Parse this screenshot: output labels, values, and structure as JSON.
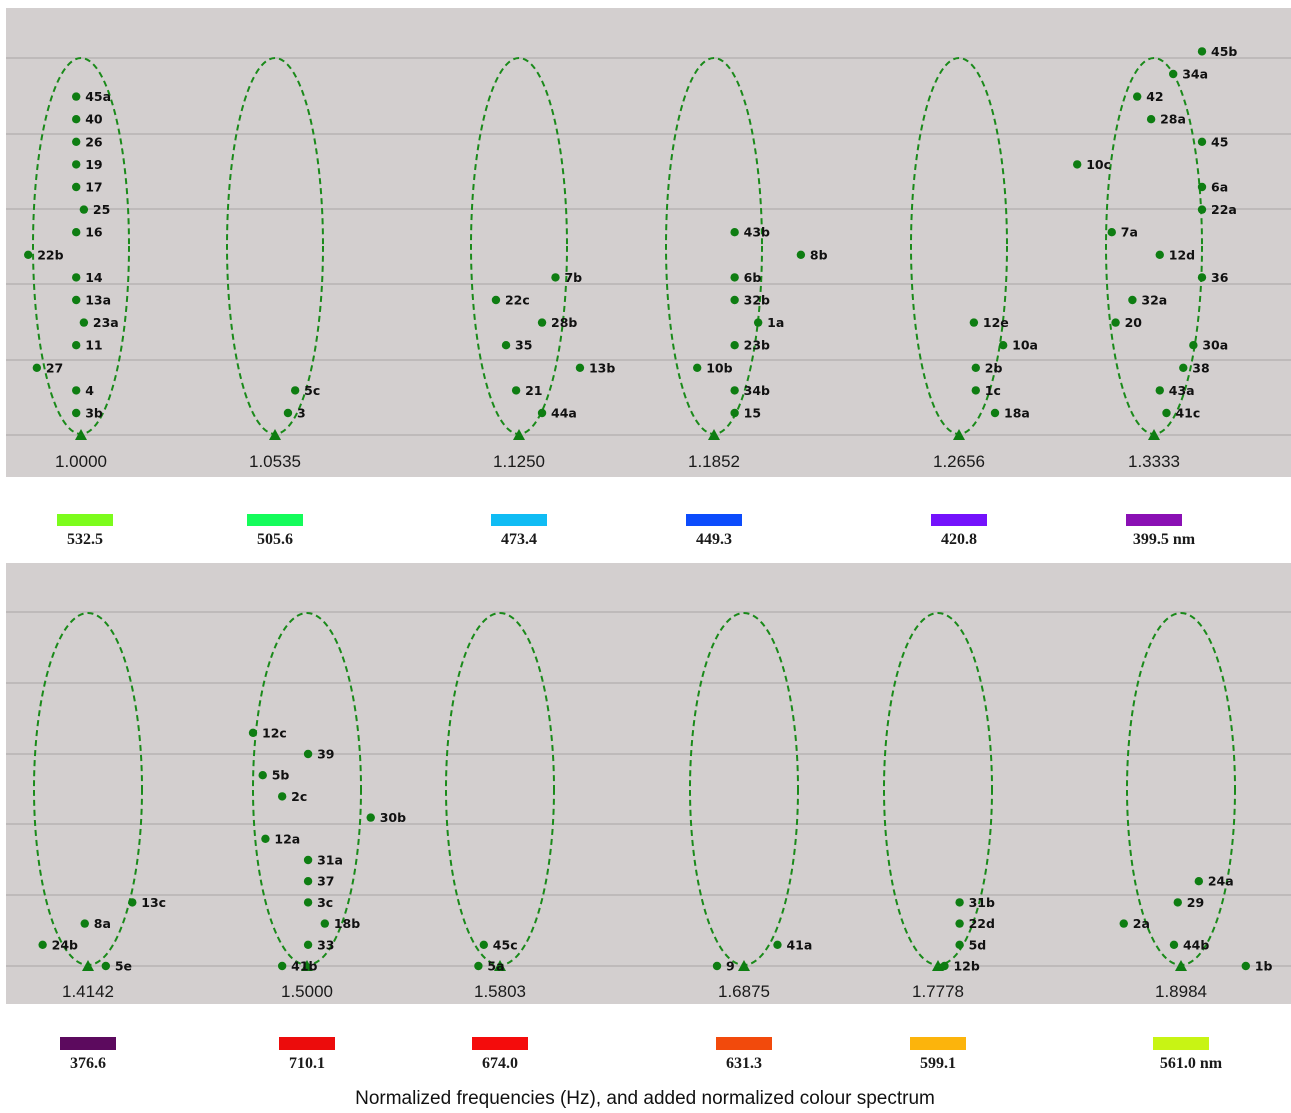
{
  "caption": "Normalized frequencies (Hz), and added normalized colour spectrum",
  "colors": {
    "panel_bg": "#d3cfcf",
    "gridline": "#a9a6a6",
    "marker": "#0e7d12",
    "ellipse": "#1a8a1a"
  },
  "chart_data": [
    {
      "type": "scatter",
      "level_range": [
        -0.5,
        16.5
      ],
      "groups": [
        {
          "ratio": "1.0000",
          "wavelength": "532.5",
          "band_color": "#7cfc1c",
          "points": [
            {
              "label": "45a",
              "x": -0.1,
              "level": 14
            },
            {
              "label": "40",
              "x": -0.1,
              "level": 13
            },
            {
              "label": "26",
              "x": -0.1,
              "level": 12
            },
            {
              "label": "19",
              "x": -0.1,
              "level": 11
            },
            {
              "label": "17",
              "x": -0.1,
              "level": 10
            },
            {
              "label": "25",
              "x": 0.06,
              "level": 9
            },
            {
              "label": "16",
              "x": -0.1,
              "level": 8
            },
            {
              "label": "22b",
              "x": -1.1,
              "level": 7
            },
            {
              "label": "14",
              "x": -0.1,
              "level": 6
            },
            {
              "label": "13a",
              "x": -0.1,
              "level": 5
            },
            {
              "label": "23a",
              "x": 0.06,
              "level": 4
            },
            {
              "label": "11",
              "x": -0.1,
              "level": 3
            },
            {
              "label": "27",
              "x": -0.92,
              "level": 2
            },
            {
              "label": "4",
              "x": -0.1,
              "level": 1
            },
            {
              "label": "3b",
              "x": -0.1,
              "level": 0
            }
          ]
        },
        {
          "ratio": "1.0535",
          "wavelength": "505.6",
          "band_color": "#14fc5a",
          "points": [
            {
              "label": "5c",
              "x": 0.42,
              "level": 1
            },
            {
              "label": "3",
              "x": 0.27,
              "level": 0
            }
          ]
        },
        {
          "ratio": "1.1250",
          "wavelength": "473.4",
          "band_color": "#10bcf4",
          "points": [
            {
              "label": "7b",
              "x": 0.76,
              "level": 6
            },
            {
              "label": "22c",
              "x": -0.48,
              "level": 5
            },
            {
              "label": "28b",
              "x": 0.48,
              "level": 4
            },
            {
              "label": "35",
              "x": -0.27,
              "level": 3
            },
            {
              "label": "13b",
              "x": 1.27,
              "level": 2
            },
            {
              "label": "21",
              "x": -0.06,
              "level": 1
            },
            {
              "label": "44a",
              "x": 0.48,
              "level": 0
            }
          ]
        },
        {
          "ratio": "1.1852",
          "wavelength": "449.3",
          "band_color": "#0c4cfc",
          "points": [
            {
              "label": "43b",
              "x": 0.43,
              "level": 8
            },
            {
              "label": "8b",
              "x": 1.81,
              "level": 7
            },
            {
              "label": "6b",
              "x": 0.43,
              "level": 6
            },
            {
              "label": "32b",
              "x": 0.43,
              "level": 5
            },
            {
              "label": "1a",
              "x": 0.92,
              "level": 4
            },
            {
              "label": "23b",
              "x": 0.43,
              "level": 3
            },
            {
              "label": "10b",
              "x": -0.35,
              "level": 2
            },
            {
              "label": "34b",
              "x": 0.43,
              "level": 1
            },
            {
              "label": "15",
              "x": 0.43,
              "level": 0
            }
          ]
        },
        {
          "ratio": "1.2656",
          "wavelength": "420.8",
          "band_color": "#7412fc",
          "points": [
            {
              "label": "12e",
              "x": 0.31,
              "level": 4
            },
            {
              "label": "10a",
              "x": 0.92,
              "level": 3
            },
            {
              "label": "2b",
              "x": 0.35,
              "level": 2
            },
            {
              "label": "1c",
              "x": 0.35,
              "level": 1
            },
            {
              "label": "18a",
              "x": 0.75,
              "level": 0
            }
          ]
        },
        {
          "ratio": "1.3333",
          "wavelength": "399.5 nm",
          "band_color": "#8a10b4",
          "points": [
            {
              "label": "45b",
              "x": 1.0,
              "level": 17
            },
            {
              "label": "34a",
              "x": 0.4,
              "level": 16
            },
            {
              "label": "42",
              "x": -0.35,
              "level": 15
            },
            {
              "label": "28a",
              "x": -0.06,
              "level": 14
            },
            {
              "label": "45",
              "x": 1.0,
              "level": 13
            },
            {
              "label": "10c",
              "x": -1.6,
              "level": 12
            },
            {
              "label": "6a",
              "x": 1.0,
              "level": 11
            },
            {
              "label": "22a",
              "x": 1.0,
              "level": 10
            },
            {
              "label": "7a",
              "x": -0.88,
              "level": 9
            },
            {
              "label": "12d",
              "x": 0.12,
              "level": 8
            },
            {
              "label": "36",
              "x": 1.0,
              "level": 7
            },
            {
              "label": "32a",
              "x": -0.45,
              "level": 6
            },
            {
              "label": "20",
              "x": -0.8,
              "level": 5
            },
            {
              "label": "30a",
              "x": 0.82,
              "level": 4
            },
            {
              "label": "38",
              "x": 0.61,
              "level": 3
            },
            {
              "label": "43a",
              "x": 0.12,
              "level": 2
            },
            {
              "label": "41c",
              "x": 0.26,
              "level": 1
            }
          ]
        }
      ]
    },
    {
      "type": "scatter",
      "level_range": [
        -0.5,
        16.5
      ],
      "groups": [
        {
          "ratio": "1.4142",
          "wavelength": "376.6",
          "band_color": "#5c0a5e",
          "points": [
            {
              "label": "13c",
              "x": 0.82,
              "level": 4
            },
            {
              "label": "8a",
              "x": -0.06,
              "level": 3
            },
            {
              "label": "24b",
              "x": -0.84,
              "level": 2
            },
            {
              "label": "5e",
              "x": 0.33,
              "level": 1
            }
          ]
        },
        {
          "ratio": "1.5000",
          "wavelength": "710.1",
          "band_color": "#ec0c0c",
          "points": [
            {
              "label": "12c",
              "x": -1.0,
              "level": 12
            },
            {
              "label": "39",
              "x": 0.02,
              "level": 11
            },
            {
              "label": "5b",
              "x": -0.82,
              "level": 10
            },
            {
              "label": "2c",
              "x": -0.46,
              "level": 9
            },
            {
              "label": "30b",
              "x": 1.18,
              "level": 8
            },
            {
              "label": "12a",
              "x": -0.77,
              "level": 7
            },
            {
              "label": "31a",
              "x": 0.02,
              "level": 6
            },
            {
              "label": "37",
              "x": 0.02,
              "level": 5
            },
            {
              "label": "3c",
              "x": 0.02,
              "level": 4
            },
            {
              "label": "18b",
              "x": 0.33,
              "level": 3
            },
            {
              "label": "33",
              "x": 0.02,
              "level": 2
            },
            {
              "label": "41b",
              "x": -0.46,
              "level": 1
            }
          ]
        },
        {
          "ratio": "1.5803",
          "wavelength": "674.0",
          "band_color": "#f40c0c",
          "points": [
            {
              "label": "45c",
              "x": -0.3,
              "level": 2
            },
            {
              "label": "5a",
              "x": -0.4,
              "level": 1
            }
          ]
        },
        {
          "ratio": "1.6875",
          "wavelength": "631.3",
          "band_color": "#f24a0c",
          "points": [
            {
              "label": "41a",
              "x": 0.62,
              "level": 2
            },
            {
              "label": "9",
              "x": -0.5,
              "level": 1
            }
          ]
        },
        {
          "ratio": "1.7778",
          "wavelength": "599.1",
          "band_color": "#fcb40c",
          "points": [
            {
              "label": "31b",
              "x": 0.4,
              "level": 4
            },
            {
              "label": "22d",
              "x": 0.4,
              "level": 3
            },
            {
              "label": "5d",
              "x": 0.4,
              "level": 2
            },
            {
              "label": "12b",
              "x": 0.12,
              "level": 1
            }
          ]
        },
        {
          "ratio": "1.8984",
          "wavelength": "561.0 nm",
          "band_color": "#c8f414",
          "points": [
            {
              "label": "24a",
              "x": 0.33,
              "level": 5
            },
            {
              "label": "29",
              "x": -0.06,
              "level": 4
            },
            {
              "label": "2a",
              "x": -1.06,
              "level": 3
            },
            {
              "label": "44b",
              "x": -0.13,
              "level": 2
            },
            {
              "label": "1b",
              "x": 1.2,
              "level": 1
            }
          ]
        }
      ]
    }
  ]
}
